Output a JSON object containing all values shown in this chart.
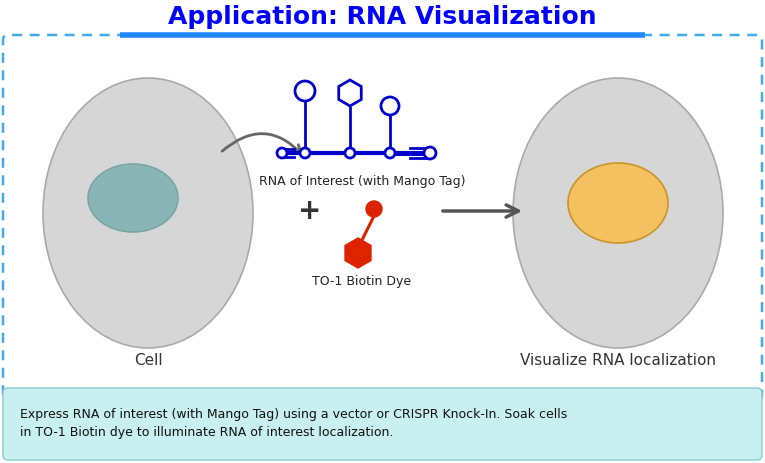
{
  "title": "Application: RNA Visualization",
  "title_color": "#0000ff",
  "title_fontsize": 18,
  "bg_color": "#ffffff",
  "outer_box_edge_color": "#44aaee",
  "outer_box_facecolor": "#ffffff",
  "cell_color": "#d6d6d6",
  "nucleus_color_left": "#8ab5b5",
  "nucleus_color_right": "#f5c060",
  "rna_color": "#0000cc",
  "dye_color": "#dd2200",
  "arrow_color": "#555555",
  "curved_arrow_color": "#666666",
  "bottom_box_color": "#c8f0f0",
  "bottom_box_edge": "#88cccc",
  "bottom_text_line1": "Express RNA of interest (with Mango Tag) using a vector or CRISPR Knock-In. Soak cells",
  "bottom_text_line2": "in TO-1 Biotin dye to illuminate RNA of interest localization.",
  "label_cell": "Cell",
  "label_rna": "RNA of Interest (with Mango Tag)",
  "label_plus": "+",
  "label_dye": "TO-1 Biotin Dye",
  "label_vis": "Visualize RNA localization"
}
